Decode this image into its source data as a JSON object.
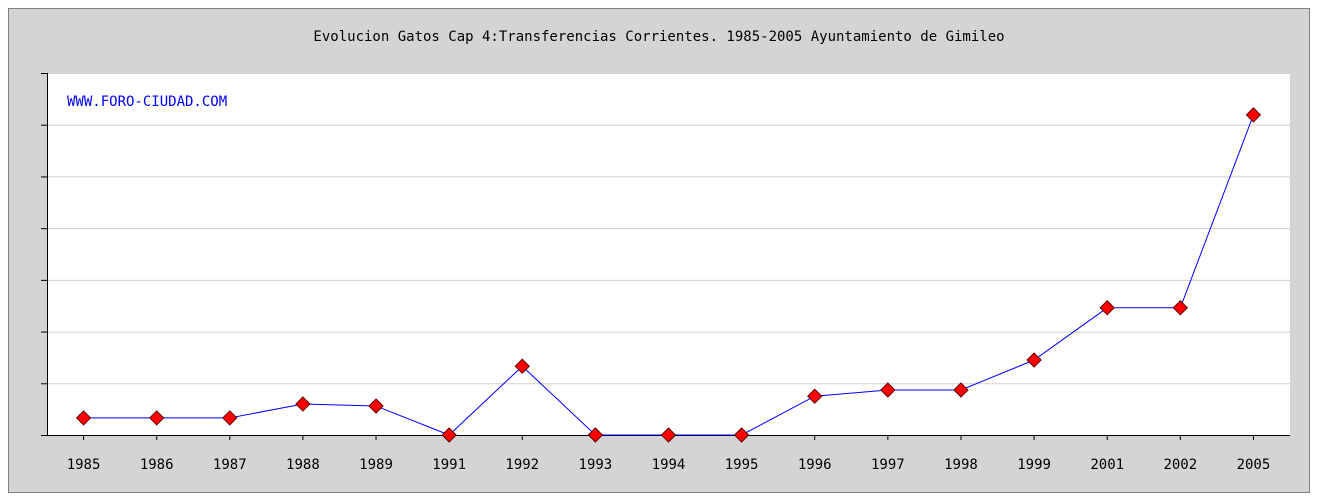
{
  "chart_data": {
    "type": "line",
    "title": "Evolucion Gatos Cap 4:Transferencias Corrientes. 1985-2005 Ayuntamiento de Gimileo",
    "annotation": "WWW.FORO-CIUDAD.COM",
    "categories": [
      "1985",
      "1986",
      "1987",
      "1988",
      "1989",
      "1991",
      "1992",
      "1993",
      "1994",
      "1995",
      "1996",
      "1997",
      "1998",
      "1999",
      "2001",
      "2002",
      "2005"
    ],
    "series": [
      {
        "color": "#0000ff",
        "marker_color": "#ff0000",
        "values": [
          0.33,
          0.33,
          0.33,
          0.6,
          0.56,
          0,
          1.33,
          0,
          0,
          0,
          0.75,
          0.87,
          0.87,
          1.45,
          2.46,
          2.46,
          6.19
        ]
      }
    ],
    "ylim": [
      0,
      7
    ],
    "yticks": [
      0,
      1,
      2,
      3,
      4,
      5,
      6,
      7
    ],
    "grid": true
  }
}
